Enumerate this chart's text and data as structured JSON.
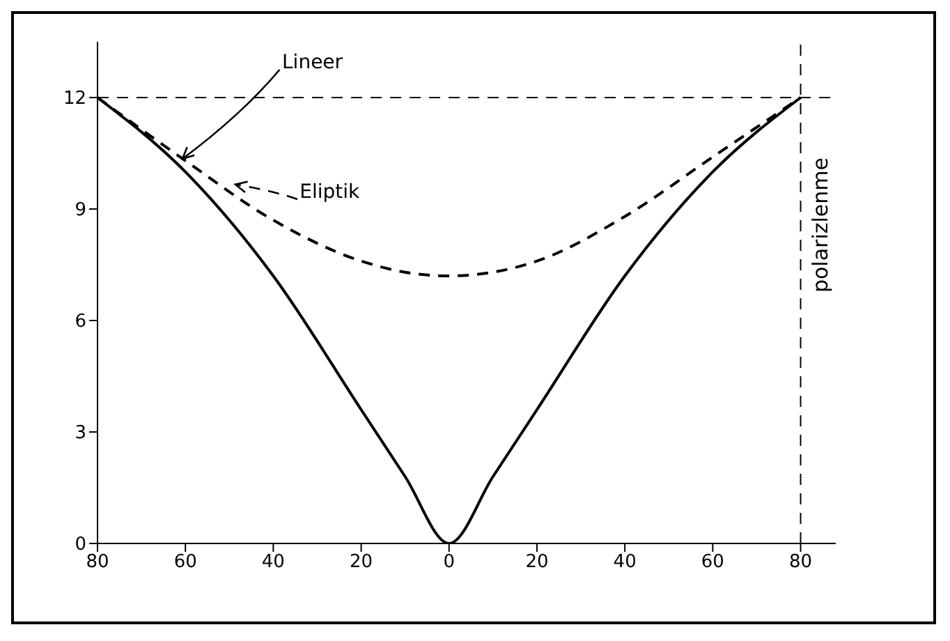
{
  "chart_data": {
    "type": "line",
    "x": [
      -80,
      -60,
      -40,
      -20,
      -10,
      0,
      10,
      20,
      40,
      60,
      80
    ],
    "series": [
      {
        "name": "Lineer",
        "color": "#000000",
        "line_style": "solid",
        "values": [
          12,
          10,
          7.2,
          3.6,
          1.8,
          0,
          1.8,
          3.6,
          7.2,
          10,
          12
        ]
      },
      {
        "name": "Eliptik",
        "color": "#000000",
        "line_style": "dashed",
        "values": [
          12,
          10.3,
          8.7,
          7.6,
          7.3,
          7.2,
          7.3,
          7.6,
          8.8,
          10.4,
          12
        ]
      }
    ],
    "xlim": [
      -80,
      88
    ],
    "ylim": [
      0,
      13.5
    ],
    "xticks": [
      {
        "value": -80,
        "label": "80"
      },
      {
        "value": -60,
        "label": "60"
      },
      {
        "value": -40,
        "label": "40"
      },
      {
        "value": -20,
        "label": "20"
      },
      0,
      20,
      40,
      60,
      80
    ],
    "yticks": [
      0,
      3,
      6,
      9,
      12
    ],
    "ref_lines": [
      {
        "axis": "y",
        "value": 12,
        "line_style": "dashed"
      },
      {
        "axis": "x",
        "value": 80,
        "label": "polarizlenme",
        "line_style": "dashed"
      }
    ],
    "marker": "none"
  }
}
